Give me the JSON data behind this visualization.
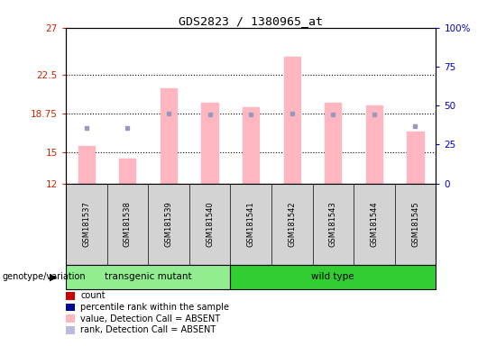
{
  "title": "GDS2823 / 1380965_at",
  "samples": [
    "GSM181537",
    "GSM181538",
    "GSM181539",
    "GSM181540",
    "GSM181541",
    "GSM181542",
    "GSM181543",
    "GSM181544",
    "GSM181545"
  ],
  "bar_values": [
    15.6,
    14.4,
    21.2,
    19.8,
    19.3,
    24.2,
    19.8,
    19.5,
    17.0
  ],
  "rank_values": [
    17.3,
    17.3,
    18.75,
    18.6,
    18.6,
    18.75,
    18.6,
    18.6,
    17.5
  ],
  "ylim_left": [
    12,
    27
  ],
  "ylim_right": [
    0,
    100
  ],
  "yticks_left": [
    12,
    15,
    18.75,
    22.5,
    27
  ],
  "yticks_right": [
    0,
    25,
    50,
    75,
    100
  ],
  "ytick_labels_left": [
    "12",
    "15",
    "18.75",
    "22.5",
    "27"
  ],
  "ytick_labels_right": [
    "0",
    "25",
    "50",
    "75",
    "100%"
  ],
  "hlines": [
    15,
    18.75,
    22.5
  ],
  "group_labels": [
    "transgenic mutant",
    "wild type"
  ],
  "group_ranges": [
    [
      0,
      4
    ],
    [
      4,
      9
    ]
  ],
  "group_colors": [
    "#90EE90",
    "#32CD32"
  ],
  "genotype_label": "genotype/variation",
  "bar_color": "#FFB6C1",
  "rank_color": "#9999BB",
  "legend_colors": [
    "#CC0000",
    "#000099",
    "#FFB6C1",
    "#BBBBDD"
  ],
  "legend_labels": [
    "count",
    "percentile rank within the sample",
    "value, Detection Call = ABSENT",
    "rank, Detection Call = ABSENT"
  ],
  "plot_bg": "#FFFFFF",
  "sample_bg": "#D3D3D3",
  "bar_bottom": 12
}
